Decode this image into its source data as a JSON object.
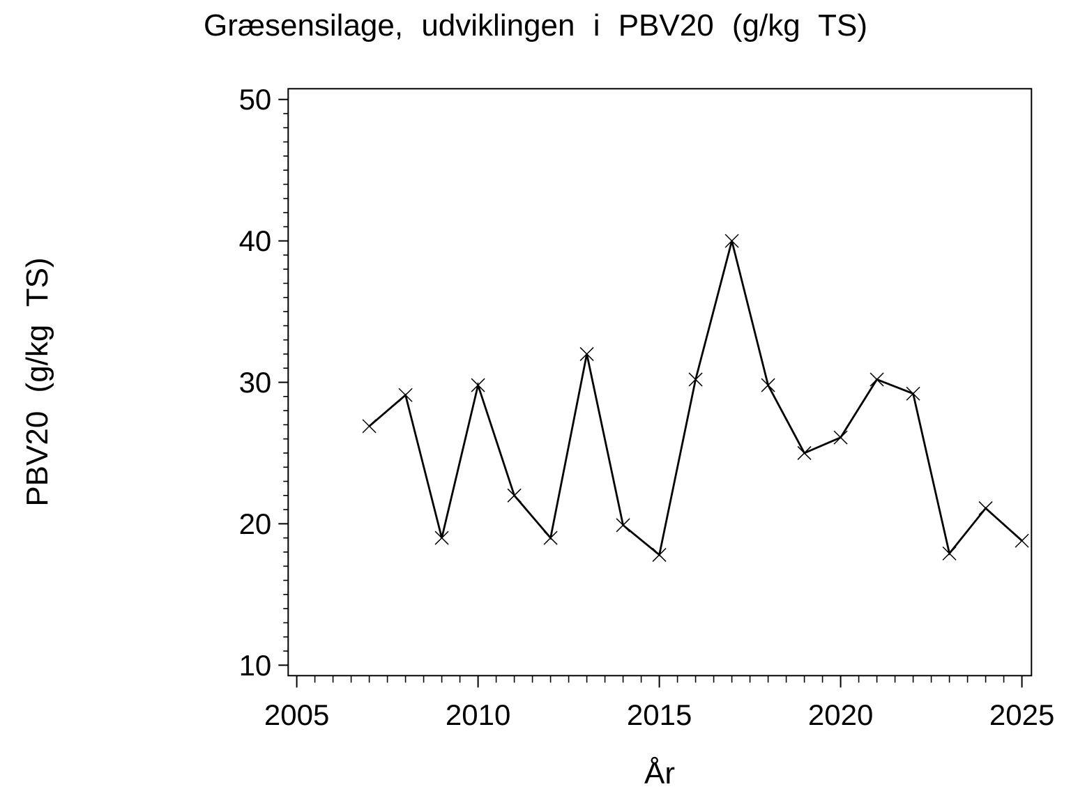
{
  "page": {
    "background_color": "#ffffff",
    "foreground_color": "#000000"
  },
  "chart_data": {
    "type": "line",
    "title": "Græsensilage, udviklingen i PBV20 (g/kg TS)",
    "xlabel": "År",
    "ylabel": "PBV20 (g/kg TS)",
    "series": [
      {
        "name": "PBV20",
        "color": "#000000",
        "marker": "x-cross",
        "x": [
          2007,
          2008,
          2009,
          2010,
          2011,
          2012,
          2013,
          2014,
          2015,
          2016,
          2017,
          2018,
          2019,
          2020,
          2021,
          2022,
          2023,
          2024,
          2025
        ],
        "values": [
          26.9,
          29.1,
          19.0,
          29.8,
          22.0,
          19.0,
          32.0,
          19.9,
          17.8,
          30.2,
          40.0,
          29.8,
          25.0,
          26.1,
          30.2,
          29.2,
          17.9,
          21.1,
          18.8
        ]
      }
    ],
    "xlim": [
      2005,
      2025
    ],
    "ylim": [
      10,
      50
    ],
    "x_major_ticks": [
      2005,
      2010,
      2015,
      2020,
      2025
    ],
    "x_minor_step": 0.5,
    "y_major_ticks": [
      10,
      20,
      30,
      40,
      50
    ],
    "y_minor_step": 1,
    "grid": false,
    "legend": "none",
    "frame": true
  }
}
